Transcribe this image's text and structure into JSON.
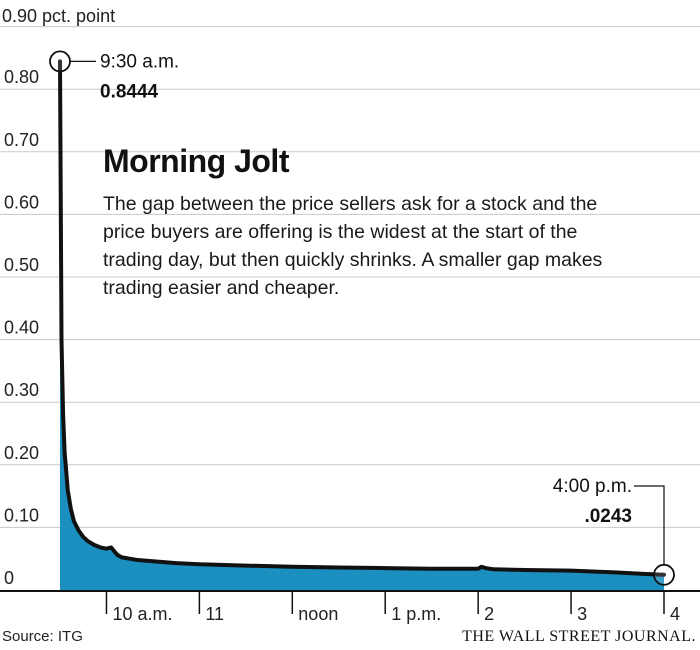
{
  "chart_data": {
    "type": "area",
    "title": "Morning Jolt",
    "description": [
      "The gap between the price sellers ask for a stock and the",
      "price buyers are offering is the widest at the start of the",
      "trading day, but then quickly shrinks. A smaller gap makes",
      "trading easier and cheaper."
    ],
    "y_unit_label": "0.90 pct. point",
    "y_ticks": [
      "0.80",
      "0.70",
      "0.60",
      "0.50",
      "0.40",
      "0.30",
      "0.20",
      "0.10",
      "0"
    ],
    "ylim": [
      0,
      0.9
    ],
    "x_ticks": [
      "10 a.m.",
      "11",
      "noon",
      "1 p.m.",
      "2",
      "3",
      "4"
    ],
    "xlim": [
      "9:30",
      "16:00"
    ],
    "series": [
      {
        "x": [
          "9:30",
          "9:31",
          "9:32",
          "9:33",
          "9:34",
          "9:35",
          "9:37",
          "9:39",
          "9:42",
          "9:45",
          "9:48",
          "9:52",
          "9:56",
          "10:00",
          "10:03",
          "10:05",
          "10:07",
          "10:10",
          "10:15",
          "10:20",
          "10:30",
          "10:45",
          "11:00",
          "11:30",
          "12:00",
          "12:30",
          "13:00",
          "13:30",
          "14:00",
          "14:02",
          "14:05",
          "14:10",
          "14:30",
          "15:00",
          "15:30",
          "15:45",
          "16:00"
        ],
        "values": [
          0.8444,
          0.4,
          0.28,
          0.22,
          0.19,
          0.16,
          0.13,
          0.11,
          0.095,
          0.085,
          0.078,
          0.072,
          0.068,
          0.066,
          0.068,
          0.062,
          0.056,
          0.052,
          0.05,
          0.048,
          0.046,
          0.043,
          0.041,
          0.039,
          0.037,
          0.036,
          0.035,
          0.034,
          0.034,
          0.037,
          0.035,
          0.033,
          0.032,
          0.031,
          0.028,
          0.026,
          0.0243
        ]
      }
    ],
    "annotations": [
      {
        "time": "9:30 a.m.",
        "value": "0.8444"
      },
      {
        "time": "4:00 p.m.",
        "value": ".0243"
      }
    ],
    "source": "Source: ITG",
    "publisher": "THE WALL STREET JOURNAL.",
    "colors": {
      "area": "#1a8fc0",
      "line": "#111111",
      "grid": "#c8c8c8",
      "text": "#222222"
    },
    "grid": true
  }
}
